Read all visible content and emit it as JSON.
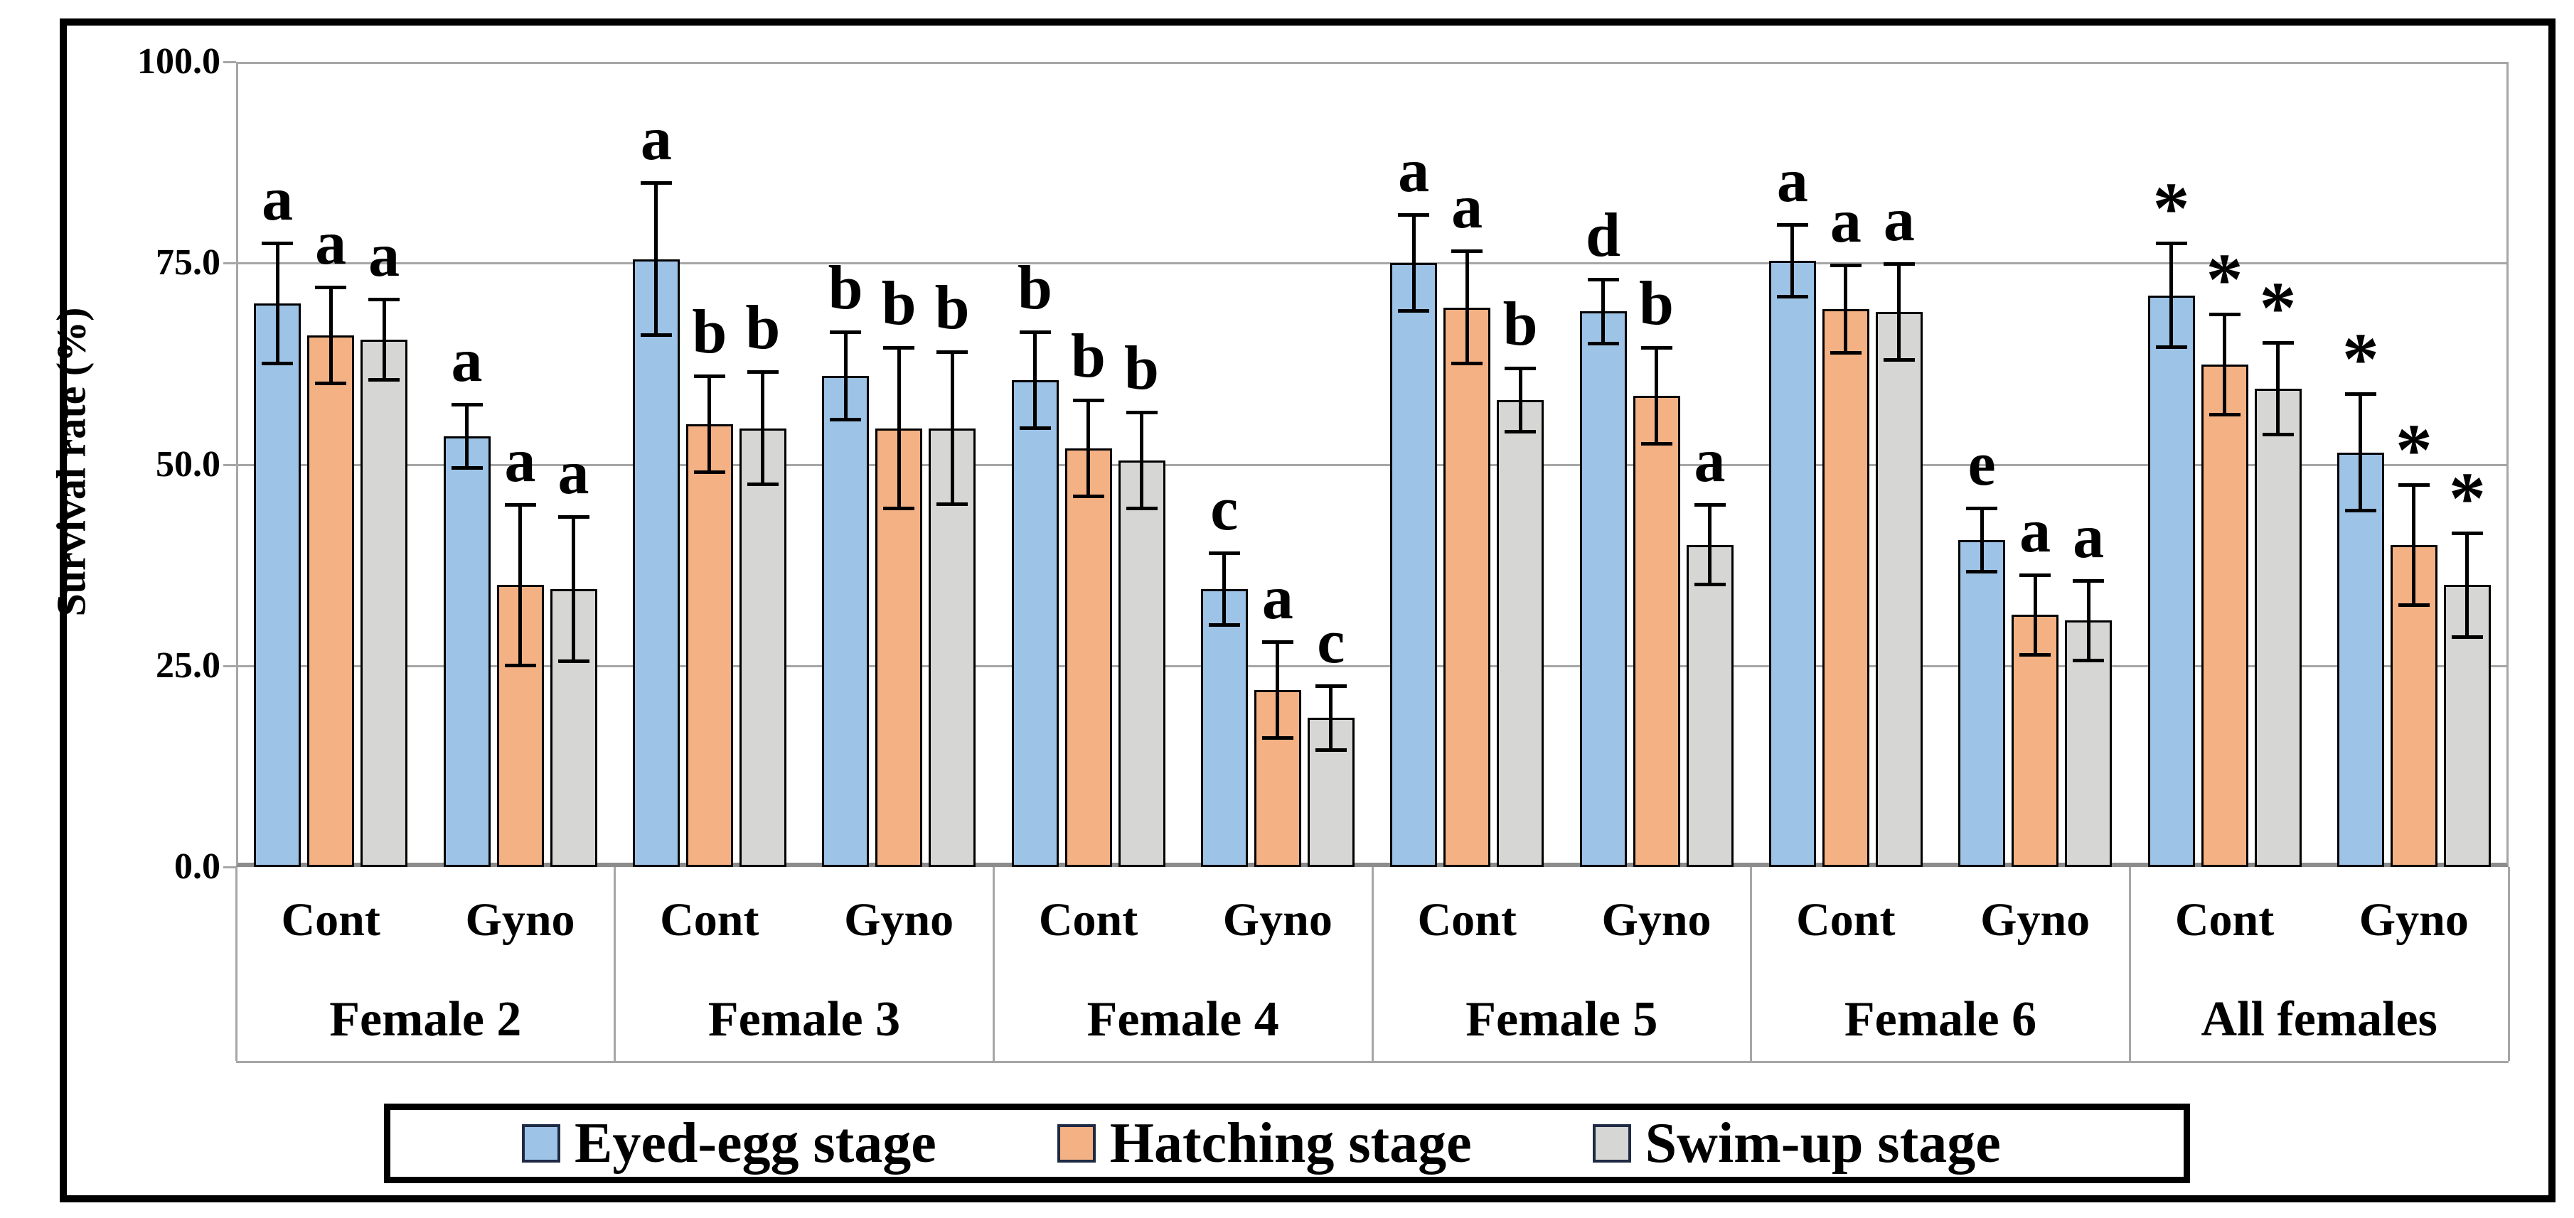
{
  "y_axis": {
    "title": "Survival rate (%)",
    "tick_labels": [
      "100.0",
      "75.0",
      "50.0",
      "25.0",
      "0.0"
    ],
    "tick_values": [
      100,
      75,
      50,
      25,
      0
    ]
  },
  "legend": {
    "items": [
      {
        "label": "Eyed-egg stage",
        "color": "#9DC3E6"
      },
      {
        "label": "Hatching stage",
        "color": "#F4B183"
      },
      {
        "label": "Swim-up stage",
        "color": "#D6D6D4"
      }
    ]
  },
  "colors": {
    "eyed_egg": "#9DC3E6",
    "hatching": "#F4B183",
    "swim_up": "#D6D6D4",
    "gridline": "#A6A6A6",
    "baseline": "#8C8C8C",
    "bar_border": "#000000"
  },
  "chart_data": {
    "type": "bar",
    "title": "",
    "xlabel": "",
    "ylabel": "Survival rate (%)",
    "ylim": [
      0,
      100
    ],
    "yticks": [
      0,
      25,
      50,
      75,
      100
    ],
    "grid": "horizontal",
    "legend_position": "bottom",
    "series": [
      "Eyed-egg stage",
      "Hatching stage",
      "Swim-up stage"
    ],
    "groups": [
      {
        "name": "Female 2",
        "subgroups": [
          {
            "name": "Cont",
            "bars": [
              {
                "series": "Eyed-egg stage",
                "value": 70.0,
                "err": 7.5,
                "letter": "a"
              },
              {
                "series": "Hatching stage",
                "value": 66.0,
                "err": 6.0,
                "letter": "a"
              },
              {
                "series": "Swim-up stage",
                "value": 65.5,
                "err": 5.0,
                "letter": "a"
              }
            ]
          },
          {
            "name": "Gyno",
            "bars": [
              {
                "series": "Eyed-egg stage",
                "value": 53.5,
                "err": 4.0,
                "letter": "a"
              },
              {
                "series": "Hatching stage",
                "value": 35.0,
                "err": 10.0,
                "letter": "a"
              },
              {
                "series": "Swim-up stage",
                "value": 34.5,
                "err": 9.0,
                "letter": "a"
              }
            ]
          }
        ]
      },
      {
        "name": "Female 3",
        "subgroups": [
          {
            "name": "Cont",
            "bars": [
              {
                "series": "Eyed-egg stage",
                "value": 75.5,
                "err": 9.5,
                "letter": "a"
              },
              {
                "series": "Hatching stage",
                "value": 55.0,
                "err": 6.0,
                "letter": "b"
              },
              {
                "series": "Swim-up stage",
                "value": 54.5,
                "err": 7.0,
                "letter": "b"
              }
            ]
          },
          {
            "name": "Gyno",
            "bars": [
              {
                "series": "Eyed-egg stage",
                "value": 61.0,
                "err": 5.5,
                "letter": "b"
              },
              {
                "series": "Hatching stage",
                "value": 54.5,
                "err": 10.0,
                "letter": "b"
              },
              {
                "series": "Swim-up stage",
                "value": 54.5,
                "err": 9.5,
                "letter": "b"
              }
            ]
          }
        ]
      },
      {
        "name": "Female 4",
        "subgroups": [
          {
            "name": "Cont",
            "bars": [
              {
                "series": "Eyed-egg stage",
                "value": 60.5,
                "err": 6.0,
                "letter": "b"
              },
              {
                "series": "Hatching stage",
                "value": 52.0,
                "err": 6.0,
                "letter": "b"
              },
              {
                "series": "Swim-up stage",
                "value": 50.5,
                "err": 6.0,
                "letter": "b"
              }
            ]
          },
          {
            "name": "Gyno",
            "bars": [
              {
                "series": "Eyed-egg stage",
                "value": 34.5,
                "err": 4.5,
                "letter": "c"
              },
              {
                "series": "Hatching stage",
                "value": 22.0,
                "err": 6.0,
                "letter": "a"
              },
              {
                "series": "Swim-up stage",
                "value": 18.5,
                "err": 4.0,
                "letter": "c"
              }
            ]
          }
        ]
      },
      {
        "name": "Female 5",
        "subgroups": [
          {
            "name": "Cont",
            "bars": [
              {
                "series": "Eyed-egg stage",
                "value": 75.0,
                "err": 6.0,
                "letter": "a"
              },
              {
                "series": "Hatching stage",
                "value": 69.5,
                "err": 7.0,
                "letter": "a"
              },
              {
                "series": "Swim-up stage",
                "value": 58.0,
                "err": 4.0,
                "letter": "b"
              }
            ]
          },
          {
            "name": "Gyno",
            "bars": [
              {
                "series": "Eyed-egg stage",
                "value": 69.0,
                "err": 4.0,
                "letter": "d"
              },
              {
                "series": "Hatching stage",
                "value": 58.5,
                "err": 6.0,
                "letter": "b"
              },
              {
                "series": "Swim-up stage",
                "value": 40.0,
                "err": 5.0,
                "letter": "a"
              }
            ]
          }
        ]
      },
      {
        "name": "Female 6",
        "subgroups": [
          {
            "name": "Cont",
            "bars": [
              {
                "series": "Eyed-egg stage",
                "value": 75.3,
                "err": 4.5,
                "letter": "a"
              },
              {
                "series": "Hatching stage",
                "value": 69.3,
                "err": 5.5,
                "letter": "a"
              },
              {
                "series": "Swim-up stage",
                "value": 68.9,
                "err": 6.0,
                "letter": "a"
              }
            ]
          },
          {
            "name": "Gyno",
            "bars": [
              {
                "series": "Eyed-egg stage",
                "value": 40.6,
                "err": 4.0,
                "letter": "e"
              },
              {
                "series": "Hatching stage",
                "value": 31.3,
                "err": 5.0,
                "letter": "a"
              },
              {
                "series": "Swim-up stage",
                "value": 30.6,
                "err": 5.0,
                "letter": "a"
              }
            ]
          }
        ]
      },
      {
        "name": "All females",
        "subgroups": [
          {
            "name": "Cont",
            "bars": [
              {
                "series": "Eyed-egg stage",
                "value": 71.0,
                "err": 6.5,
                "letter": "*"
              },
              {
                "series": "Hatching stage",
                "value": 62.4,
                "err": 6.3,
                "letter": "*"
              },
              {
                "series": "Swim-up stage",
                "value": 59.4,
                "err": 5.7,
                "letter": "*"
              }
            ]
          },
          {
            "name": "Gyno",
            "bars": [
              {
                "series": "Eyed-egg stage",
                "value": 51.5,
                "err": 7.3,
                "letter": "*"
              },
              {
                "series": "Hatching stage",
                "value": 40.0,
                "err": 7.5,
                "letter": "*"
              },
              {
                "series": "Swim-up stage",
                "value": 35.0,
                "err": 6.5,
                "letter": "*"
              }
            ]
          }
        ]
      }
    ]
  }
}
